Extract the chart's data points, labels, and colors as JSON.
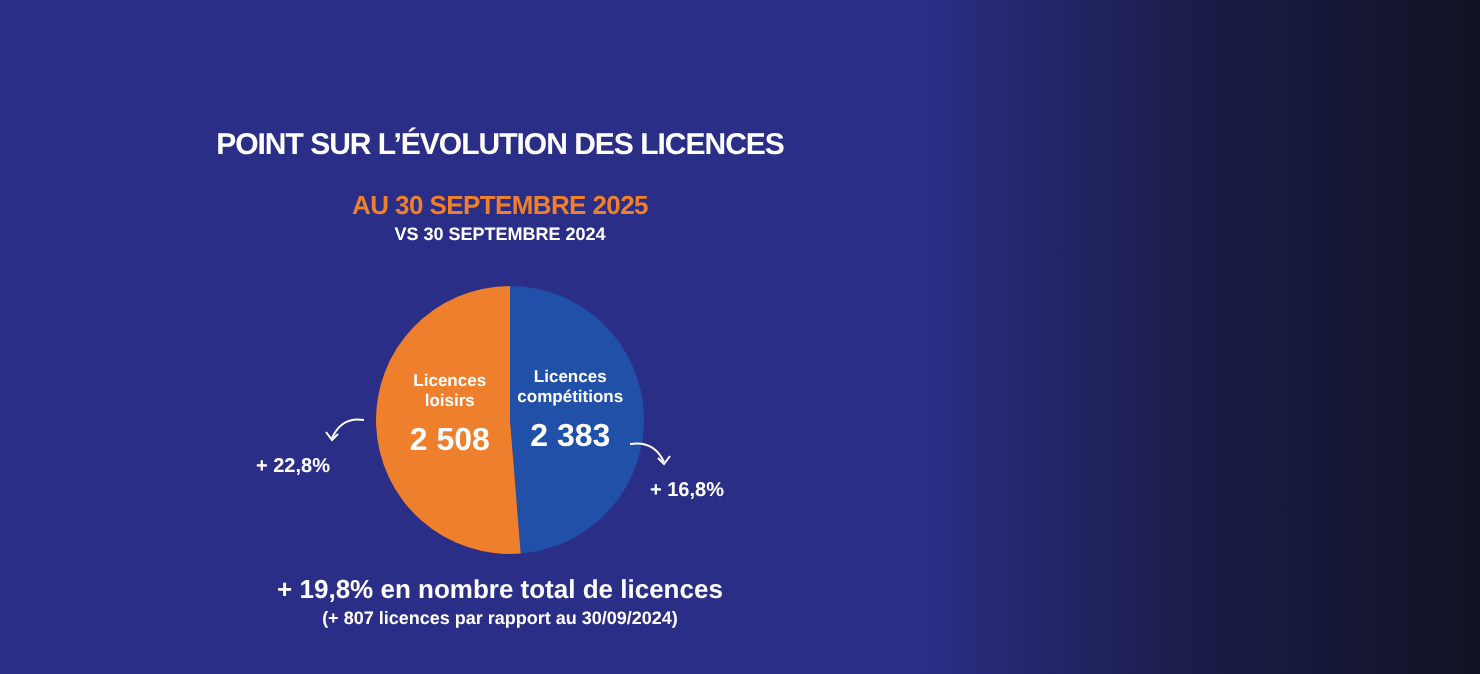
{
  "chart_data": {
    "type": "pie",
    "title": "POINT SUR L’ÉVOLUTION DES LICENCES",
    "subtitle": "AU 30 SEPTEMBRE 2025",
    "categories": [
      "Licences compétitions",
      "Licences loisirs"
    ],
    "values": [
      2383,
      2508
    ],
    "colors": [
      "#2150a8",
      "#ee7f2d"
    ],
    "data_labels": true,
    "legend": false,
    "annotations": [
      "VS 30 SEPTEMBRE 2024",
      "+ 16,8%",
      "+ 22,8%",
      "+ 19,8% en nombre total de licences",
      "(+ 807 licences par rapport au 30/09/2024)"
    ]
  }
}
